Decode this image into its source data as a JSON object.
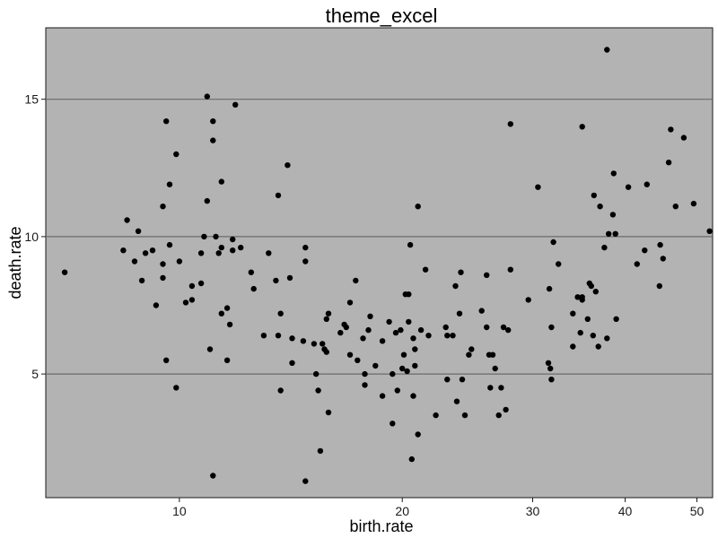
{
  "chart_data": {
    "type": "scatter",
    "title": "theme_excel",
    "xlabel": "birth.rate",
    "ylabel": "death.rate",
    "x_scale": "log",
    "xlim": [
      6.6,
      52.5
    ],
    "ylim": [
      0.5,
      17.6
    ],
    "x_ticks": [
      10,
      20,
      30,
      40,
      50
    ],
    "x_tick_labels": [
      "10",
      "20",
      "30",
      "40",
      "50"
    ],
    "y_ticks": [
      5,
      10,
      15
    ],
    "y_tick_labels": [
      "5",
      "10",
      "15"
    ],
    "grid": "horizontal major lines",
    "legend": "none",
    "colors": {
      "panel_background": "#b3b3b3",
      "panel_border": "#1a1a1a",
      "grid": "#6b6b6b",
      "point": "#000000",
      "page_background": "#ffffff"
    },
    "points": [
      [
        7.0,
        8.7
      ],
      [
        8.4,
        9.5
      ],
      [
        8.5,
        10.6
      ],
      [
        8.7,
        9.1
      ],
      [
        8.8,
        10.2
      ],
      [
        8.9,
        8.4
      ],
      [
        9.0,
        9.4
      ],
      [
        9.2,
        9.5
      ],
      [
        9.3,
        7.5
      ],
      [
        9.5,
        11.1
      ],
      [
        9.5,
        9.0
      ],
      [
        9.5,
        8.5
      ],
      [
        9.6,
        14.2
      ],
      [
        9.6,
        5.5
      ],
      [
        9.7,
        11.9
      ],
      [
        9.7,
        9.7
      ],
      [
        9.9,
        13.0
      ],
      [
        9.9,
        4.5
      ],
      [
        10.0,
        9.1
      ],
      [
        10.2,
        7.6
      ],
      [
        10.4,
        7.7
      ],
      [
        10.4,
        8.2
      ],
      [
        10.7,
        8.3
      ],
      [
        10.7,
        9.4
      ],
      [
        10.8,
        10.0
      ],
      [
        10.9,
        15.1
      ],
      [
        10.9,
        11.3
      ],
      [
        11.0,
        5.9
      ],
      [
        11.1,
        14.2
      ],
      [
        11.1,
        13.5
      ],
      [
        11.1,
        1.3
      ],
      [
        11.2,
        10.0
      ],
      [
        11.3,
        9.4
      ],
      [
        11.4,
        12.0
      ],
      [
        11.4,
        9.6
      ],
      [
        11.4,
        7.2
      ],
      [
        11.6,
        7.4
      ],
      [
        11.6,
        5.5
      ],
      [
        11.7,
        6.8
      ],
      [
        11.8,
        9.5
      ],
      [
        11.8,
        9.9
      ],
      [
        11.9,
        14.8
      ],
      [
        12.1,
        9.6
      ],
      [
        12.5,
        8.7
      ],
      [
        12.6,
        8.1
      ],
      [
        13.0,
        6.4
      ],
      [
        13.2,
        9.4
      ],
      [
        13.5,
        8.4
      ],
      [
        13.6,
        11.5
      ],
      [
        13.6,
        6.4
      ],
      [
        13.7,
        7.2
      ],
      [
        13.7,
        4.4
      ],
      [
        14.0,
        12.6
      ],
      [
        14.1,
        8.5
      ],
      [
        14.2,
        6.3
      ],
      [
        14.2,
        5.4
      ],
      [
        14.7,
        6.2
      ],
      [
        14.8,
        9.6
      ],
      [
        14.8,
        9.1
      ],
      [
        14.8,
        1.1
      ],
      [
        15.2,
        6.1
      ],
      [
        15.3,
        5.0
      ],
      [
        15.4,
        4.4
      ],
      [
        15.5,
        2.2
      ],
      [
        15.6,
        6.1
      ],
      [
        15.7,
        5.9
      ],
      [
        15.8,
        7.0
      ],
      [
        15.8,
        5.8
      ],
      [
        15.9,
        7.2
      ],
      [
        15.9,
        3.6
      ],
      [
        16.5,
        6.5
      ],
      [
        16.7,
        6.8
      ],
      [
        16.8,
        6.7
      ],
      [
        17.0,
        7.6
      ],
      [
        17.0,
        5.7
      ],
      [
        17.3,
        8.4
      ],
      [
        17.4,
        5.5
      ],
      [
        17.7,
        6.3
      ],
      [
        17.8,
        5.0
      ],
      [
        17.8,
        4.6
      ],
      [
        18.0,
        6.6
      ],
      [
        18.1,
        7.1
      ],
      [
        18.4,
        5.3
      ],
      [
        18.8,
        6.2
      ],
      [
        18.8,
        4.2
      ],
      [
        19.2,
        6.9
      ],
      [
        19.4,
        5.0
      ],
      [
        19.4,
        3.2
      ],
      [
        19.6,
        6.5
      ],
      [
        19.7,
        4.4
      ],
      [
        19.9,
        6.6
      ],
      [
        20.0,
        5.2
      ],
      [
        20.1,
        5.7
      ],
      [
        20.2,
        7.9
      ],
      [
        20.3,
        5.1
      ],
      [
        20.4,
        7.9
      ],
      [
        20.4,
        6.9
      ],
      [
        20.5,
        9.7
      ],
      [
        20.6,
        1.9
      ],
      [
        20.7,
        6.3
      ],
      [
        20.7,
        4.2
      ],
      [
        20.8,
        5.3
      ],
      [
        20.8,
        5.9
      ],
      [
        21.0,
        11.1
      ],
      [
        21.0,
        2.8
      ],
      [
        21.2,
        6.6
      ],
      [
        21.5,
        8.8
      ],
      [
        21.7,
        6.4
      ],
      [
        22.2,
        3.5
      ],
      [
        22.9,
        6.7
      ],
      [
        23.0,
        6.4
      ],
      [
        23.0,
        4.8
      ],
      [
        23.4,
        6.4
      ],
      [
        23.6,
        8.2
      ],
      [
        23.7,
        4.0
      ],
      [
        23.9,
        7.2
      ],
      [
        24.0,
        8.7
      ],
      [
        24.1,
        4.8
      ],
      [
        24.3,
        3.5
      ],
      [
        24.6,
        5.7
      ],
      [
        24.8,
        5.9
      ],
      [
        25.6,
        7.3
      ],
      [
        26.0,
        8.6
      ],
      [
        26.0,
        6.7
      ],
      [
        26.2,
        5.7
      ],
      [
        26.3,
        4.5
      ],
      [
        26.5,
        5.7
      ],
      [
        26.7,
        5.2
      ],
      [
        27.0,
        3.5
      ],
      [
        27.2,
        4.5
      ],
      [
        27.4,
        6.7
      ],
      [
        27.6,
        3.7
      ],
      [
        27.8,
        6.6
      ],
      [
        28.0,
        14.1
      ],
      [
        28.0,
        8.8
      ],
      [
        29.6,
        7.7
      ],
      [
        30.5,
        11.8
      ],
      [
        31.5,
        5.4
      ],
      [
        31.6,
        8.1
      ],
      [
        31.7,
        5.2
      ],
      [
        31.8,
        6.7
      ],
      [
        31.8,
        4.8
      ],
      [
        32.0,
        9.8
      ],
      [
        32.5,
        9.0
      ],
      [
        34.0,
        7.2
      ],
      [
        34.0,
        6.0
      ],
      [
        34.5,
        7.8
      ],
      [
        34.8,
        6.5
      ],
      [
        35.0,
        14.0
      ],
      [
        35.0,
        7.8
      ],
      [
        35.0,
        7.7
      ],
      [
        35.6,
        7.0
      ],
      [
        35.8,
        8.3
      ],
      [
        36.0,
        8.2
      ],
      [
        36.2,
        6.4
      ],
      [
        36.3,
        11.5
      ],
      [
        36.5,
        8.0
      ],
      [
        36.8,
        6.0
      ],
      [
        37.0,
        11.1
      ],
      [
        37.5,
        9.6
      ],
      [
        37.8,
        6.3
      ],
      [
        37.8,
        16.8
      ],
      [
        38.0,
        10.1
      ],
      [
        38.5,
        10.8
      ],
      [
        38.6,
        12.3
      ],
      [
        38.8,
        10.1
      ],
      [
        38.9,
        7.0
      ],
      [
        40.4,
        11.8
      ],
      [
        41.5,
        9.0
      ],
      [
        42.5,
        9.5
      ],
      [
        42.8,
        11.9
      ],
      [
        44.5,
        8.2
      ],
      [
        44.6,
        9.7
      ],
      [
        45.0,
        9.2
      ],
      [
        45.8,
        12.7
      ],
      [
        46.1,
        13.9
      ],
      [
        46.8,
        11.1
      ],
      [
        48.0,
        13.6
      ],
      [
        49.5,
        11.2
      ],
      [
        52.0,
        10.2
      ]
    ]
  }
}
